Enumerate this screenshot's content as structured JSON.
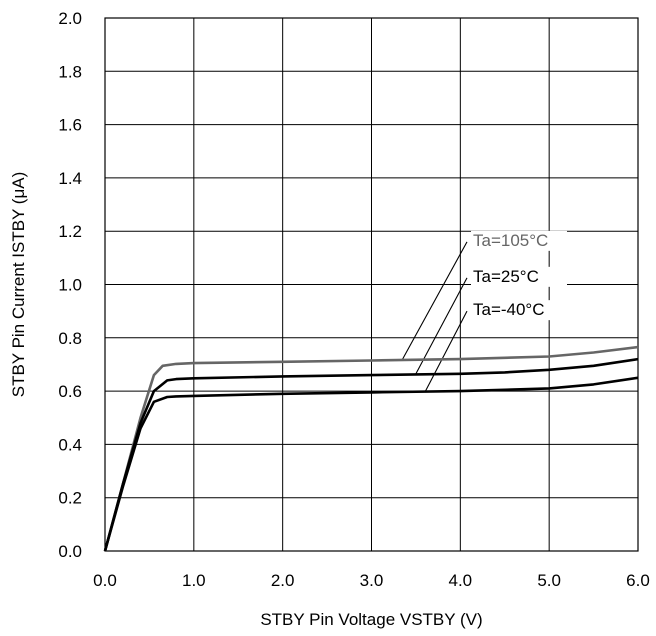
{
  "chart_data": {
    "type": "line",
    "xlabel": "STBY Pin Voltage VSTBY (V)",
    "ylabel": "STBY Pin Current ISTBY (μA)",
    "xlim": [
      0.0,
      6.0
    ],
    "ylim": [
      0.0,
      2.0
    ],
    "x_ticks": [
      "0.0",
      "1.0",
      "2.0",
      "3.0",
      "4.0",
      "5.0",
      "6.0"
    ],
    "y_ticks": [
      "0.0",
      "0.2",
      "0.4",
      "0.6",
      "0.8",
      "1.0",
      "1.2",
      "1.4",
      "1.6",
      "1.8",
      "2.0"
    ],
    "grid": true,
    "series": [
      {
        "name": "Ta=105°C",
        "color": "#666666",
        "x": [
          0.0,
          0.2,
          0.4,
          0.55,
          0.65,
          0.8,
          1.0,
          2.0,
          3.0,
          4.0,
          4.5,
          5.0,
          5.5,
          6.0
        ],
        "y": [
          0.0,
          0.25,
          0.5,
          0.66,
          0.695,
          0.702,
          0.705,
          0.71,
          0.715,
          0.72,
          0.725,
          0.73,
          0.745,
          0.765
        ]
      },
      {
        "name": "Ta=25°C",
        "color": "#000000",
        "x": [
          0.0,
          0.2,
          0.4,
          0.55,
          0.7,
          0.8,
          1.0,
          2.0,
          3.0,
          4.0,
          4.5,
          5.0,
          5.5,
          6.0
        ],
        "y": [
          0.0,
          0.25,
          0.48,
          0.6,
          0.64,
          0.645,
          0.648,
          0.655,
          0.66,
          0.665,
          0.67,
          0.68,
          0.695,
          0.72
        ]
      },
      {
        "name": "Ta=-40°C",
        "color": "#000000",
        "x": [
          0.0,
          0.2,
          0.4,
          0.55,
          0.7,
          0.8,
          1.0,
          2.0,
          3.0,
          4.0,
          4.5,
          5.0,
          5.5,
          6.0
        ],
        "y": [
          0.0,
          0.24,
          0.46,
          0.56,
          0.578,
          0.58,
          0.582,
          0.59,
          0.595,
          0.6,
          0.605,
          0.61,
          0.625,
          0.65
        ]
      }
    ],
    "annotations": [
      {
        "label_index": 0,
        "label_x": 4.12,
        "label_y": 1.145,
        "pointer_x": 3.35,
        "pointer_y": 0.72
      },
      {
        "label_index": 1,
        "label_x": 4.12,
        "label_y": 1.01,
        "pointer_x": 3.5,
        "pointer_y": 0.665
      },
      {
        "label_index": 2,
        "label_x": 4.12,
        "label_y": 0.885,
        "pointer_x": 3.6,
        "pointer_y": 0.595
      }
    ]
  }
}
